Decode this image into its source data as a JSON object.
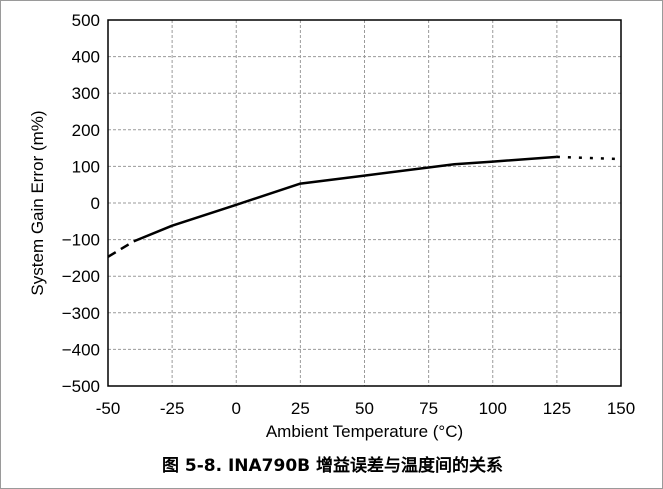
{
  "caption": "图 5-8. INA790B 增益误差与温度间的关系",
  "chart_data": {
    "type": "line",
    "title": "",
    "xlabel": "Ambient Temperature (°C)",
    "ylabel": "System Gain Error (m%)",
    "xlim": [
      -50,
      150
    ],
    "ylim": [
      -500,
      500
    ],
    "xticks": [
      -50,
      -25,
      0,
      25,
      50,
      75,
      100,
      125,
      150
    ],
    "yticks": [
      -500,
      -400,
      -300,
      -200,
      -100,
      0,
      100,
      200,
      300,
      400,
      500
    ],
    "xtick_labels": [
      "-50",
      "-25",
      "0",
      "25",
      "50",
      "75",
      "100",
      "125",
      "150"
    ],
    "ytick_labels": [
      "−500",
      "−400",
      "−300",
      "−200",
      "−100",
      "0",
      "100",
      "200",
      "300",
      "400",
      "500"
    ],
    "grid": true,
    "series": [
      {
        "style": "solid",
        "color": "#000000",
        "x": [
          -40,
          -25,
          0,
          25,
          50,
          85,
          100,
          125
        ],
        "y": [
          -105,
          -62,
          -5,
          53,
          75,
          106,
          113,
          126
        ]
      },
      {
        "style": "dashed",
        "color": "#000000",
        "x": [
          -50,
          -40
        ],
        "y": [
          -147,
          -105
        ]
      },
      {
        "style": "dotted",
        "color": "#000000",
        "x": [
          125,
          150
        ],
        "y": [
          126,
          120
        ]
      }
    ]
  }
}
